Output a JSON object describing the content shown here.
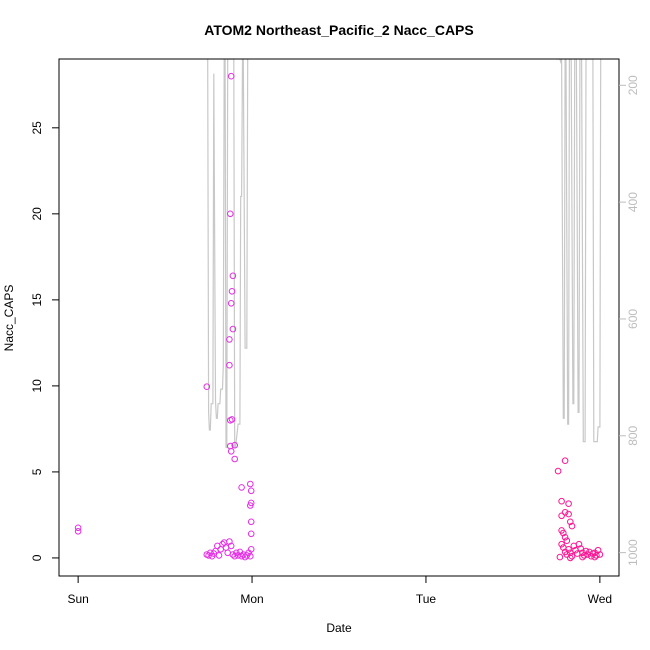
{
  "chart_data": {
    "type": "scatter",
    "title": "ATOM2 Northeast_Pacific_2 Nacc_CAPS",
    "xlabel": "Date",
    "ylabel": "Nacc_CAPS",
    "x_ticks": [
      {
        "value": 0,
        "label": "Sun"
      },
      {
        "value": 1,
        "label": "Mon"
      },
      {
        "value": 2,
        "label": "Tue"
      },
      {
        "value": 3,
        "label": "Wed"
      }
    ],
    "xlim": [
      -0.11,
      3.11
    ],
    "ylim": [
      -1.05,
      29
    ],
    "y_ticks": [
      0,
      5,
      10,
      15,
      20,
      25
    ],
    "y2_ticks": [
      200,
      400,
      600,
      800,
      1000
    ],
    "y2lim": [
      1040,
      155
    ],
    "y2_reversed": true,
    "grid": false,
    "colors": {
      "points_early": "#e62ee6",
      "points_late": "#ff1493",
      "secondary_line": "#c8c8c8",
      "axis": "#000000",
      "axis_right": "#bdbdbd"
    },
    "series": [
      {
        "values": [
          [
            0.0,
            1.55
          ],
          [
            0.0,
            1.75
          ],
          [
            0.74,
            9.95
          ],
          [
            0.74,
            0.2
          ],
          [
            0.75,
            0.15
          ],
          [
            0.76,
            0.3
          ],
          [
            0.77,
            0.1
          ],
          [
            0.78,
            0.25
          ],
          [
            0.79,
            0.4
          ],
          [
            0.8,
            0.7
          ],
          [
            0.81,
            0.15
          ],
          [
            0.82,
            0.5
          ],
          [
            0.83,
            0.8
          ],
          [
            0.84,
            0.9
          ],
          [
            0.85,
            0.6
          ],
          [
            0.86,
            0.3
          ],
          [
            0.87,
            12.7
          ],
          [
            0.875,
            20.0
          ],
          [
            0.88,
            28.0
          ],
          [
            0.88,
            14.8
          ],
          [
            0.885,
            15.5
          ],
          [
            0.89,
            16.4
          ],
          [
            0.89,
            13.3
          ],
          [
            0.87,
            11.2
          ],
          [
            0.875,
            8.0
          ],
          [
            0.885,
            8.05
          ],
          [
            0.875,
            6.5
          ],
          [
            0.88,
            6.2
          ],
          [
            0.9,
            6.55
          ],
          [
            0.9,
            5.75
          ],
          [
            0.87,
            0.95
          ],
          [
            0.88,
            0.7
          ],
          [
            0.89,
            0.2
          ],
          [
            0.9,
            0.1
          ],
          [
            0.91,
            0.3
          ],
          [
            0.92,
            0.15
          ],
          [
            0.93,
            0.35
          ],
          [
            0.94,
            0.1
          ],
          [
            0.95,
            0.2
          ],
          [
            0.96,
            0.05
          ],
          [
            0.97,
            0.15
          ],
          [
            0.98,
            0.3
          ],
          [
            0.99,
            0.1
          ],
          [
            0.94,
            4.1
          ],
          [
            0.99,
            4.3
          ],
          [
            0.995,
            3.9
          ],
          [
            0.995,
            3.2
          ],
          [
            0.99,
            3.05
          ],
          [
            0.995,
            2.1
          ],
          [
            0.995,
            1.4
          ],
          [
            0.995,
            0.5
          ]
        ]
      },
      {
        "values": [
          [
            2.76,
            5.05
          ],
          [
            2.8,
            5.65
          ],
          [
            2.78,
            3.3
          ],
          [
            2.8,
            2.65
          ],
          [
            2.78,
            2.45
          ],
          [
            2.82,
            3.15
          ],
          [
            2.82,
            2.55
          ],
          [
            2.83,
            2.1
          ],
          [
            2.84,
            1.85
          ],
          [
            2.78,
            1.6
          ],
          [
            2.79,
            1.45
          ],
          [
            2.8,
            1.2
          ],
          [
            2.81,
            1.0
          ],
          [
            2.78,
            0.8
          ],
          [
            2.79,
            0.6
          ],
          [
            2.8,
            0.35
          ],
          [
            2.81,
            0.2
          ],
          [
            2.82,
            0.5
          ],
          [
            2.83,
            0.3
          ],
          [
            2.84,
            0.1
          ],
          [
            2.85,
            0.7
          ],
          [
            2.86,
            0.45
          ],
          [
            2.87,
            0.25
          ],
          [
            2.88,
            0.8
          ],
          [
            2.89,
            0.55
          ],
          [
            2.9,
            0.3
          ],
          [
            2.91,
            0.15
          ],
          [
            2.92,
            0.4
          ],
          [
            2.93,
            0.2
          ],
          [
            2.94,
            0.35
          ],
          [
            2.95,
            0.1
          ],
          [
            2.96,
            0.25
          ],
          [
            2.97,
            0.3
          ],
          [
            2.98,
            0.15
          ],
          [
            2.99,
            0.45
          ],
          [
            3.0,
            0.2
          ],
          [
            2.77,
            0.05
          ],
          [
            2.83,
            0.0
          ],
          [
            2.9,
            0.05
          ],
          [
            2.97,
            0.05
          ]
        ]
      }
    ],
    "secondary_series": {
      "segments": [
        [
          [
            0.745,
            155
          ],
          [
            0.75,
            760
          ],
          [
            0.755,
            790
          ],
          [
            0.76,
            790
          ],
          [
            0.765,
            745
          ],
          [
            0.775,
            745
          ],
          [
            0.78,
            180
          ],
          [
            0.79,
            740
          ],
          [
            0.795,
            770
          ],
          [
            0.8,
            770
          ],
          [
            0.805,
            745
          ],
          [
            0.815,
            745
          ],
          [
            0.82,
            720
          ],
          [
            0.83,
            720
          ],
          [
            0.835,
            680
          ],
          [
            0.84,
            155
          ],
          [
            0.845,
            155
          ],
          [
            0.85,
            820
          ],
          [
            0.855,
            820
          ],
          [
            0.86,
            155
          ],
          [
            0.88,
            155
          ],
          [
            0.895,
            155
          ],
          [
            0.9,
            820
          ],
          [
            0.905,
            820
          ],
          [
            0.92,
            780
          ],
          [
            0.93,
            780
          ],
          [
            0.935,
            390
          ],
          [
            0.94,
            390
          ],
          [
            0.945,
            155
          ],
          [
            0.95,
            155
          ],
          [
            0.96,
            650
          ],
          [
            0.97,
            650
          ],
          [
            0.975,
            155
          ]
        ],
        [
          [
            2.75,
            155
          ],
          [
            2.77,
            155
          ],
          [
            2.775,
            160
          ],
          [
            2.78,
            155
          ],
          [
            2.79,
            770
          ],
          [
            2.795,
            770
          ],
          [
            2.8,
            155
          ],
          [
            2.805,
            155
          ],
          [
            2.815,
            780
          ],
          [
            2.82,
            780
          ],
          [
            2.825,
            155
          ],
          [
            2.835,
            155
          ],
          [
            2.845,
            745
          ],
          [
            2.85,
            745
          ],
          [
            2.855,
            155
          ],
          [
            2.865,
            155
          ],
          [
            2.875,
            760
          ],
          [
            2.88,
            760
          ],
          [
            2.885,
            155
          ],
          [
            2.895,
            155
          ],
          [
            2.905,
            810
          ],
          [
            2.915,
            810
          ],
          [
            2.92,
            155
          ],
          [
            2.93,
            155
          ],
          [
            2.94,
            155
          ],
          [
            2.95,
            155
          ],
          [
            2.96,
            155
          ],
          [
            2.965,
            810
          ],
          [
            2.985,
            810
          ],
          [
            2.99,
            785
          ],
          [
            3.0,
            785
          ],
          [
            3.005,
            155
          ]
        ]
      ]
    }
  }
}
